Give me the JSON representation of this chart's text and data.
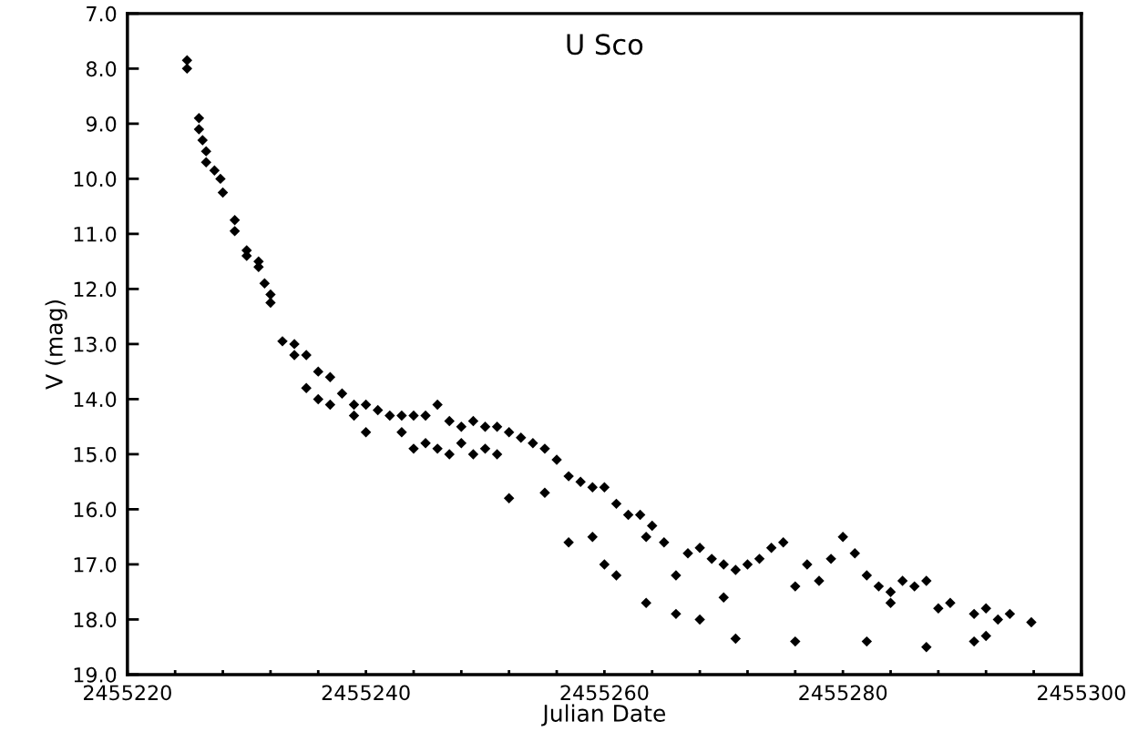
{
  "chart_data": {
    "type": "scatter",
    "title": "U Sco",
    "xlabel": "Julian Date",
    "ylabel": "V (mag)",
    "xlim": [
      2455220,
      2455300
    ],
    "xticks": [
      2455220,
      {
        "value": 2455224,
        "label": null
      },
      {
        "value": 2455228,
        "label": null
      },
      {
        "value": 2455232,
        "label": null
      },
      {
        "value": 2455236,
        "label": null
      },
      2455240,
      {
        "value": 2455244,
        "label": null
      },
      {
        "value": 2455248,
        "label": null
      },
      {
        "value": 2455252,
        "label": null
      },
      {
        "value": 2455256,
        "label": null
      },
      2455260,
      {
        "value": 2455264,
        "label": null
      },
      {
        "value": 2455268,
        "label": null
      },
      {
        "value": 2455272,
        "label": null
      },
      {
        "value": 2455276,
        "label": null
      },
      2455280,
      {
        "value": 2455284,
        "label": null
      },
      {
        "value": 2455288,
        "label": null
      },
      {
        "value": 2455292,
        "label": null
      },
      {
        "value": 2455296,
        "label": null
      },
      2455300
    ],
    "ylim": [
      19.0,
      7.0
    ],
    "yticks": [
      {
        "value": 7,
        "label": "7.0"
      },
      {
        "value": 8,
        "label": "8.0"
      },
      {
        "value": 9,
        "label": "9.0"
      },
      {
        "value": 10,
        "label": "10.0"
      },
      {
        "value": 11,
        "label": "11.0"
      },
      {
        "value": 12,
        "label": "12.0"
      },
      {
        "value": 13,
        "label": "13.0"
      },
      {
        "value": 14,
        "label": "14.0"
      },
      {
        "value": 15,
        "label": "15.0"
      },
      {
        "value": 16,
        "label": "16.0"
      },
      {
        "value": 17,
        "label": "17.0"
      },
      {
        "value": 18,
        "label": "18.0"
      },
      {
        "value": 19,
        "label": "19.0"
      }
    ],
    "grid": false,
    "marker": "diamond",
    "series": [
      {
        "color": "#000000",
        "x": [
          2455225.0,
          2455225.0,
          2455226.0,
          2455226.0,
          2455226.3,
          2455226.6,
          2455226.6,
          2455227.3,
          2455227.8,
          2455228.0,
          2455229.0,
          2455229.0,
          2455230.0,
          2455230.0,
          2455231.0,
          2455231.0,
          2455231.5,
          2455232.0,
          2455232.0,
          2455233.0,
          2455234.0,
          2455234.0,
          2455235.0,
          2455235.0,
          2455236.0,
          2455236.0,
          2455237.0,
          2455237.0,
          2455238.0,
          2455239.0,
          2455239.0,
          2455240.0,
          2455240.0,
          2455241.0,
          2455242.0,
          2455243.0,
          2455243.0,
          2455244.0,
          2455244.0,
          2455245.0,
          2455245.0,
          2455246.0,
          2455246.0,
          2455247.0,
          2455247.0,
          2455248.0,
          2455248.0,
          2455249.0,
          2455249.0,
          2455250.0,
          2455250.0,
          2455251.0,
          2455251.0,
          2455252.0,
          2455252.0,
          2455253.0,
          2455254.0,
          2455255.0,
          2455255.0,
          2455256.0,
          2455257.0,
          2455257.0,
          2455258.0,
          2455259.0,
          2455259.0,
          2455260.0,
          2455260.0,
          2455261.0,
          2455261.0,
          2455262.0,
          2455263.0,
          2455263.5,
          2455263.5,
          2455264.0,
          2455265.0,
          2455266.0,
          2455266.0,
          2455267.0,
          2455268.0,
          2455268.0,
          2455269.0,
          2455270.0,
          2455270.0,
          2455271.0,
          2455271.0,
          2455272.0,
          2455273.0,
          2455274.0,
          2455275.0,
          2455276.0,
          2455276.0,
          2455277.0,
          2455278.0,
          2455279.0,
          2455280.0,
          2455281.0,
          2455282.0,
          2455282.0,
          2455283.0,
          2455284.0,
          2455284.0,
          2455285.0,
          2455286.0,
          2455287.0,
          2455287.0,
          2455288.0,
          2455289.0,
          2455291.0,
          2455291.0,
          2455292.0,
          2455292.0,
          2455293.0,
          2455294.0,
          2455295.8
        ],
        "values": [
          7.85,
          8.0,
          8.9,
          9.1,
          9.3,
          9.5,
          9.7,
          9.85,
          10.0,
          10.25,
          10.75,
          10.95,
          11.3,
          11.4,
          11.5,
          11.6,
          11.9,
          12.1,
          12.25,
          12.95,
          13.0,
          13.2,
          13.2,
          13.8,
          13.5,
          14.0,
          13.6,
          14.1,
          13.9,
          14.1,
          14.3,
          14.1,
          14.6,
          14.2,
          14.3,
          14.3,
          14.6,
          14.3,
          14.9,
          14.3,
          14.8,
          14.1,
          14.9,
          14.4,
          15.0,
          14.5,
          14.8,
          14.4,
          15.0,
          14.5,
          14.9,
          14.5,
          15.0,
          14.6,
          15.8,
          14.7,
          14.8,
          14.9,
          15.7,
          15.1,
          15.4,
          16.6,
          15.5,
          15.6,
          16.5,
          15.6,
          17.0,
          15.9,
          17.2,
          16.1,
          16.1,
          16.5,
          17.7,
          16.3,
          16.6,
          17.2,
          17.9,
          16.8,
          16.7,
          18.0,
          16.9,
          17.0,
          17.6,
          17.1,
          18.35,
          17.0,
          16.9,
          16.7,
          16.6,
          17.4,
          18.4,
          17.0,
          17.3,
          16.9,
          16.5,
          16.8,
          17.2,
          18.4,
          17.4,
          17.5,
          17.7,
          17.3,
          17.4,
          17.3,
          18.5,
          17.8,
          17.7,
          17.9,
          18.4,
          17.8,
          18.3,
          18.0,
          17.9,
          18.05
        ]
      }
    ]
  }
}
